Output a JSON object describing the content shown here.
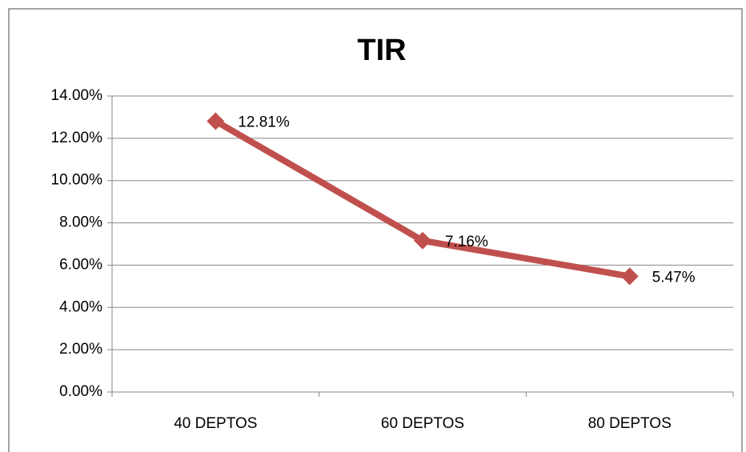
{
  "chart_data": {
    "type": "line",
    "title": "TIR",
    "categories": [
      "40 DEPTOS",
      "60 DEPTOS",
      "80 DEPTOS"
    ],
    "series": [
      {
        "name": "TIR",
        "color": "#c0504d",
        "values": [
          12.81,
          7.16,
          5.47
        ],
        "value_labels": [
          "12.81%",
          "7.16%",
          "5.47%"
        ]
      }
    ],
    "ylim": [
      0,
      14
    ],
    "yticks": [
      {
        "value": 0,
        "label": "0.00%"
      },
      {
        "value": 2,
        "label": "2.00%"
      },
      {
        "value": 4,
        "label": "4.00%"
      },
      {
        "value": 6,
        "label": "6.00%"
      },
      {
        "value": 8,
        "label": "8.00%"
      },
      {
        "value": 10,
        "label": "10.00%"
      },
      {
        "value": 12,
        "label": "12.00%"
      },
      {
        "value": 14,
        "label": "14.00%"
      }
    ],
    "grid": true
  }
}
